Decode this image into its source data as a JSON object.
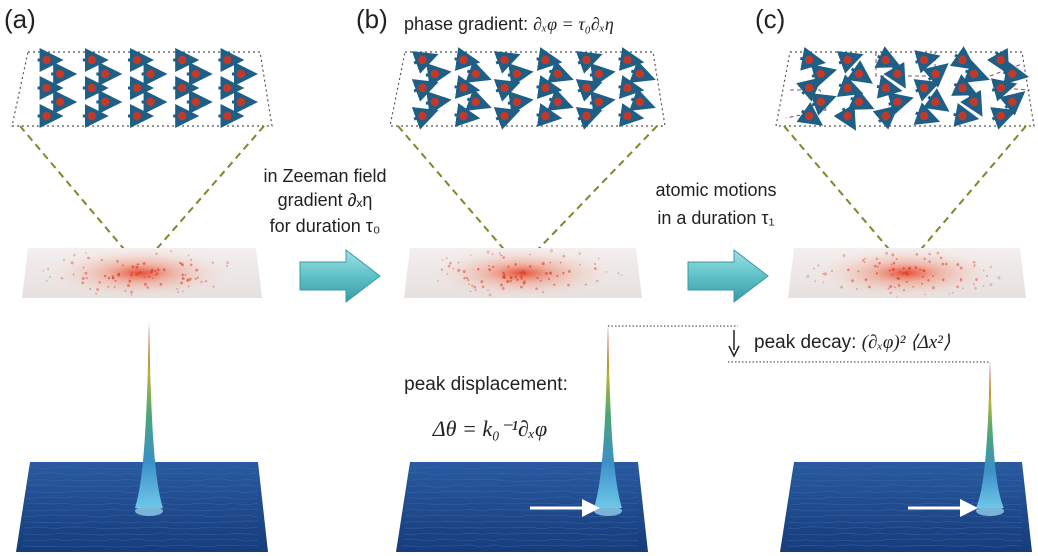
{
  "panels": [
    {
      "label": "(a)"
    },
    {
      "label": "(b)",
      "caption_text": "phase gradient: ",
      "caption_math": "∂ₓφ = τ₀∂ₓη"
    },
    {
      "label": "(c)"
    }
  ],
  "arrow1": {
    "line1": "in Zeeman field",
    "line2": "gradient ∂ₓη",
    "line3": "for duration τ₀"
  },
  "arrow2": {
    "line1": "atomic motions",
    "line2": "in a duration τ₁"
  },
  "peak_displacement": {
    "text": "peak displacement:",
    "formula": "Δθ = k₀⁻¹∂ₓφ"
  },
  "peak_decay": {
    "text": "peak decay: ",
    "formula": "(∂ₓφ)² ⟨Δx²⟩"
  },
  "colors": {
    "spin_ball": "#c0392b",
    "spin_arrow": "#1f5f86",
    "dashed_green": "#7a8a2a",
    "block_arrow": "#5fc2c8",
    "floor_blue": "#1d4a8f"
  }
}
